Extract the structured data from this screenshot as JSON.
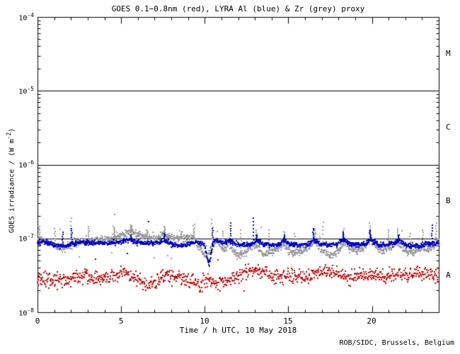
{
  "page": {
    "footer": "ROB/SIDC, Brussels, Belgium"
  },
  "chart_data": {
    "type": "scatter",
    "title": "GOES 0.1−0.8nm (red), LYRA Al (blue) & Zr (grey) proxy",
    "xlabel": "Time / h UTC, 10 May 2018",
    "ylabel": {
      "pre": "GOES irradiance / (W m",
      "sup": "-2",
      "post": ")"
    },
    "xlim": [
      0,
      24
    ],
    "ylim": [
      1e-08,
      0.0001
    ],
    "x_major_ticks": [
      0,
      5,
      10,
      15,
      20
    ],
    "x_minor_step": 1,
    "x_tick_labels": [
      "0",
      "5",
      "10",
      "15",
      "20"
    ],
    "y_tick_labels": [
      {
        "base": "10",
        "exp": "-4"
      },
      {
        "base": "10",
        "exp": "-5"
      },
      {
        "base": "10",
        "exp": "-6"
      },
      {
        "base": "10",
        "exp": "-7"
      },
      {
        "base": "10",
        "exp": "-8"
      }
    ],
    "hlines": [
      1e-05,
      1e-06,
      1e-07
    ],
    "flare_class_labels": [
      "M",
      "C",
      "B",
      "A"
    ],
    "background_color": "#ffffff",
    "axis_color": "#000000",
    "grid": "off",
    "legend": "color names embedded in title",
    "series": [
      {
        "name": "LYRA Zr proxy (grey)",
        "color": "#9b9b9b",
        "noise_dex": 0.025,
        "dots_per_hour": 60,
        "outlier_prob": 0.012,
        "points": [
          [
            0,
            9.6e-08
          ],
          [
            0.4,
            9.3e-08
          ],
          [
            0.9,
            8.3e-08
          ],
          [
            1.4,
            7.2e-08
          ],
          [
            1.8,
            7.6e-08
          ],
          [
            2.2,
            8.6e-08
          ],
          [
            2.7,
            9.2e-08
          ],
          [
            3.2,
            9.4e-08
          ],
          [
            3.7,
            9.2e-08
          ],
          [
            4.2,
            9.5e-08
          ],
          [
            4.7,
            1.02e-07
          ],
          [
            5.1,
            1.1e-07
          ],
          [
            5.6,
            1.28e-07
          ],
          [
            5.9,
            1.18e-07
          ],
          [
            6.3,
            1.08e-07
          ],
          [
            6.7,
            1.02e-07
          ],
          [
            7.1,
            1e-07
          ],
          [
            7.5,
            1.16e-07
          ],
          [
            7.8,
            1.08e-07
          ],
          [
            8.2,
            1e-07
          ],
          [
            8.7,
            1e-07
          ],
          [
            9.1,
            1.02e-07
          ],
          [
            9.35,
            1.06e-07
          ],
          [
            9.6,
            7.8e-08
          ],
          [
            9.9,
            6.2e-08
          ],
          [
            10.15,
            5.6e-08
          ],
          [
            10.45,
            7.8e-08
          ],
          [
            10.65,
            9.2e-08
          ],
          [
            10.9,
            8.2e-08
          ],
          [
            11.2,
            7e-08
          ],
          [
            11.45,
            8.6e-08
          ],
          [
            11.7,
            6.8e-08
          ],
          [
            12,
            5.9e-08
          ],
          [
            12.3,
            6.1e-08
          ],
          [
            12.7,
            7.3e-08
          ],
          [
            13.05,
            8.2e-08
          ],
          [
            13.3,
            6.8e-08
          ],
          [
            13.6,
            6.1e-08
          ],
          [
            13.9,
            6.4e-08
          ],
          [
            14.3,
            7.2e-08
          ],
          [
            14.7,
            8.3e-08
          ],
          [
            15,
            6.9e-08
          ],
          [
            15.3,
            6.3e-08
          ],
          [
            15.7,
            6.7e-08
          ],
          [
            16.1,
            7.4e-08
          ],
          [
            16.55,
            9.2e-08
          ],
          [
            16.9,
            7.4e-08
          ],
          [
            17.3,
            6.1e-08
          ],
          [
            17.7,
            5.9e-08
          ],
          [
            18.05,
            7e-08
          ],
          [
            18.35,
            9e-08
          ],
          [
            18.7,
            7.4e-08
          ],
          [
            19.1,
            6.7e-08
          ],
          [
            19.5,
            7.4e-08
          ],
          [
            19.95,
            9.8e-08
          ],
          [
            20.3,
            7.6e-08
          ],
          [
            20.7,
            6.9e-08
          ],
          [
            21.05,
            7.7e-08
          ],
          [
            21.5,
            9e-08
          ],
          [
            21.85,
            7e-08
          ],
          [
            22.2,
            6.4e-08
          ],
          [
            22.6,
            6.6e-08
          ],
          [
            23,
            7.6e-08
          ],
          [
            23.4,
            6.9e-08
          ],
          [
            23.85,
            8.8e-08
          ],
          [
            24,
            9.2e-08
          ]
        ],
        "spikes": [
          [
            0.12,
            1.45e-07
          ],
          [
            1.05,
            1.35e-07
          ],
          [
            2.0,
            1.9e-07
          ],
          [
            3.05,
            1.45e-07
          ],
          [
            4.6,
            1.4e-07
          ],
          [
            5.6,
            1.5e-07
          ],
          [
            6.55,
            1.3e-07
          ],
          [
            7.6,
            1.45e-07
          ],
          [
            8.6,
            1.25e-07
          ],
          [
            9.35,
            1.55e-07
          ],
          [
            10.45,
            1.8e-07
          ],
          [
            11.1,
            1.25e-07
          ],
          [
            12.15,
            1.3e-07
          ],
          [
            13.1,
            1.3e-07
          ],
          [
            13.85,
            1.3e-07
          ],
          [
            14.75,
            1.25e-07
          ],
          [
            15.4,
            1.15e-07
          ],
          [
            16.6,
            1.35e-07
          ],
          [
            17.05,
            1.65e-07
          ],
          [
            18.3,
            1.35e-07
          ],
          [
            19.9,
            1.6e-07
          ],
          [
            21.0,
            1.3e-07
          ],
          [
            21.55,
            1.35e-07
          ],
          [
            22.3,
            1.15e-07
          ],
          [
            23.05,
            1.3e-07
          ],
          [
            23.85,
            1.6e-07
          ]
        ]
      },
      {
        "name": "GOES 0.1-0.8nm (red)",
        "color": "#dd0000",
        "noise_dex": 0.05,
        "dots_per_hour": 40,
        "outlier_prob": 0.01,
        "points": [
          [
            0,
            2.9e-08
          ],
          [
            0.5,
            2.7e-08
          ],
          [
            1,
            2.6e-08
          ],
          [
            1.5,
            2.8e-08
          ],
          [
            2,
            2.7e-08
          ],
          [
            2.5,
            3e-08
          ],
          [
            2.9,
            3.3e-08
          ],
          [
            3.3,
            2.9e-08
          ],
          [
            3.8,
            2.8e-08
          ],
          [
            4.3,
            3e-08
          ],
          [
            4.8,
            3.3e-08
          ],
          [
            5.2,
            3.5e-08
          ],
          [
            5.7,
            3e-08
          ],
          [
            6.2,
            2.6e-08
          ],
          [
            6.8,
            2.3e-08
          ],
          [
            7.3,
            2.8e-08
          ],
          [
            7.7,
            3.3e-08
          ],
          [
            8.2,
            3e-08
          ],
          [
            8.7,
            2.8e-08
          ],
          [
            9.2,
            2.6e-08
          ],
          [
            9.7,
            2.2e-08
          ],
          [
            10.1,
            2.8e-08
          ],
          [
            10.5,
            2.5e-08
          ],
          [
            11,
            2.6e-08
          ],
          [
            11.6,
            2.8e-08
          ],
          [
            12.2,
            3.2e-08
          ],
          [
            12.8,
            3.6e-08
          ],
          [
            13.2,
            3.7e-08
          ],
          [
            13.7,
            3.3e-08
          ],
          [
            14.2,
            3e-08
          ],
          [
            14.8,
            3.1e-08
          ],
          [
            15.4,
            3e-08
          ],
          [
            16,
            3.1e-08
          ],
          [
            16.6,
            3.4e-08
          ],
          [
            17.1,
            3.8e-08
          ],
          [
            17.6,
            3.4e-08
          ],
          [
            18.1,
            3.2e-08
          ],
          [
            18.7,
            3e-08
          ],
          [
            19.3,
            3.3e-08
          ],
          [
            19.9,
            3.1e-08
          ],
          [
            20.5,
            3e-08
          ],
          [
            21.1,
            3.2e-08
          ],
          [
            21.7,
            3.3e-08
          ],
          [
            22.3,
            3.2e-08
          ],
          [
            22.9,
            3.4e-08
          ],
          [
            23.5,
            3.1e-08
          ],
          [
            24,
            3.2e-08
          ]
        ],
        "spikes": []
      },
      {
        "name": "LYRA Al proxy (blue)",
        "color": "#0000cd",
        "noise_dex": 0.015,
        "dots_per_hour": 60,
        "outlier_prob": 0.004,
        "points": [
          [
            0,
            9e-08
          ],
          [
            0.6,
            8.8e-08
          ],
          [
            1.2,
            7.9e-08
          ],
          [
            1.7,
            7.9e-08
          ],
          [
            2.1,
            8.6e-08
          ],
          [
            2.7,
            8.8e-08
          ],
          [
            3.4,
            8.7e-08
          ],
          [
            4.2,
            8.7e-08
          ],
          [
            4.9,
            8.9e-08
          ],
          [
            5.5,
            9.6e-08
          ],
          [
            6,
            8.9e-08
          ],
          [
            6.6,
            8.6e-08
          ],
          [
            7.2,
            8.7e-08
          ],
          [
            7.6,
            9.4e-08
          ],
          [
            8,
            8.4e-08
          ],
          [
            8.5,
            8e-08
          ],
          [
            9,
            8.3e-08
          ],
          [
            9.3,
            9e-08
          ],
          [
            9.7,
            8.7e-08
          ],
          [
            10.0,
            8.2e-08
          ],
          [
            10.15,
            5.5e-08
          ],
          [
            10.25,
            4.2e-08
          ],
          [
            10.35,
            5.5e-08
          ],
          [
            10.5,
            8.5e-08
          ],
          [
            10.6,
            9.6e-08
          ],
          [
            10.8,
            9.1e-08
          ],
          [
            11.1,
            8.6e-08
          ],
          [
            11.5,
            9.4e-08
          ],
          [
            11.8,
            8.5e-08
          ],
          [
            12.2,
            8.1e-08
          ],
          [
            12.7,
            8.2e-08
          ],
          [
            13.1,
            9.4e-08
          ],
          [
            13.5,
            8.4e-08
          ],
          [
            14,
            8.1e-08
          ],
          [
            14.4,
            8.3e-08
          ],
          [
            14.75,
            9.3e-08
          ],
          [
            15.1,
            8.3e-08
          ],
          [
            15.6,
            8e-08
          ],
          [
            16.1,
            8.3e-08
          ],
          [
            16.5,
            9.5e-08
          ],
          [
            16.9,
            8.4e-08
          ],
          [
            17.4,
            8.1e-08
          ],
          [
            17.9,
            8.3e-08
          ],
          [
            18.3,
            9.6e-08
          ],
          [
            18.7,
            8.4e-08
          ],
          [
            19.2,
            8.1e-08
          ],
          [
            19.6,
            8.5e-08
          ],
          [
            19.95,
            9.7e-08
          ],
          [
            20.4,
            8.3e-08
          ],
          [
            20.9,
            8.2e-08
          ],
          [
            21.3,
            8.6e-08
          ],
          [
            21.6,
            9.4e-08
          ],
          [
            22,
            8.2e-08
          ],
          [
            22.5,
            7.9e-08
          ],
          [
            22.9,
            8e-08
          ],
          [
            23.3,
            8.7e-08
          ],
          [
            23.7,
            8.3e-08
          ],
          [
            24,
            8.9e-08
          ]
        ],
        "spikes": [
          [
            1.5,
            1.2e-07
          ],
          [
            2.05,
            1.35e-07
          ],
          [
            5.6,
            1.1e-07
          ],
          [
            7.6,
            1.15e-07
          ],
          [
            10.5,
            1.35e-07
          ],
          [
            11.55,
            1.6e-07
          ],
          [
            12.9,
            1.9e-07
          ],
          [
            13.1,
            1.1e-07
          ],
          [
            14.75,
            1.1e-07
          ],
          [
            16.5,
            1.35e-07
          ],
          [
            18.3,
            1.2e-07
          ],
          [
            19.9,
            1.3e-07
          ],
          [
            21.6,
            1.1e-07
          ],
          [
            23.6,
            1.5e-07
          ]
        ]
      }
    ]
  }
}
